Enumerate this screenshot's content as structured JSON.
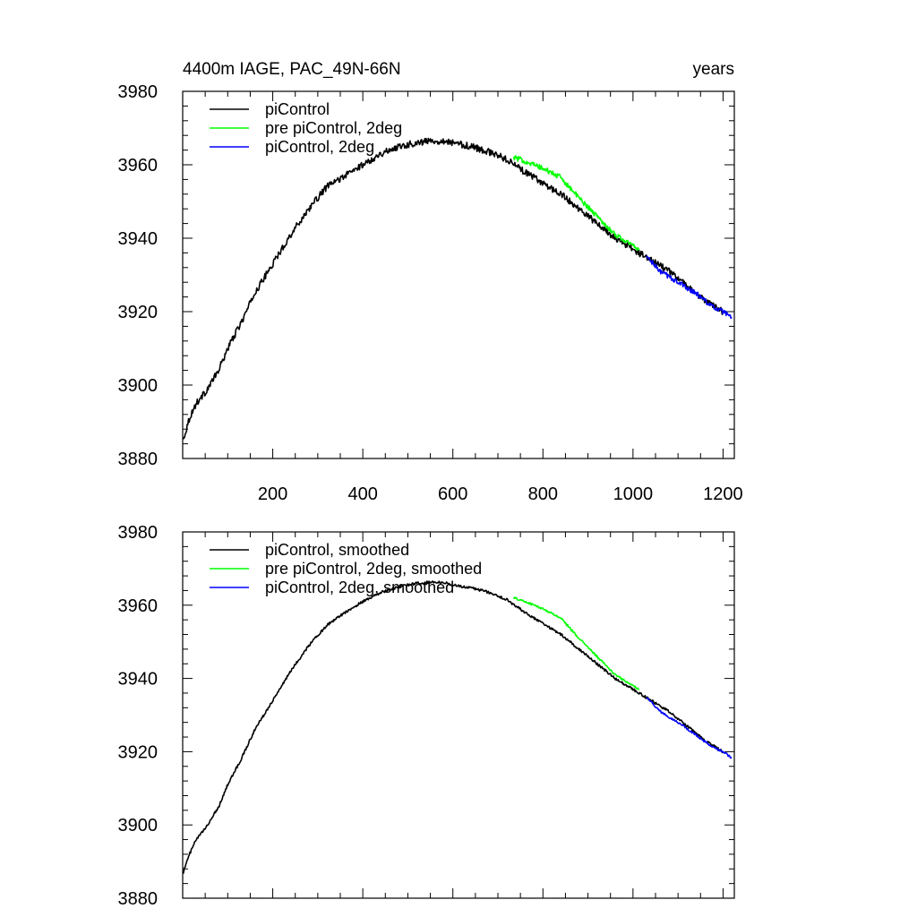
{
  "chart_data": [
    {
      "type": "line",
      "title_left": "4400m IAGE, PAC_49N-66N",
      "title_right": "years",
      "xlim": [
        0,
        1225
      ],
      "ylim": [
        3880,
        3980
      ],
      "xticks": [
        200,
        400,
        600,
        800,
        1000,
        1200
      ],
      "xtick_labels": [
        "200",
        "400",
        "600",
        "800",
        "1000",
        "1200"
      ],
      "yticks": [
        3880,
        3900,
        3920,
        3940,
        3960,
        3980
      ],
      "ytick_labels": [
        "3880",
        "3900",
        "3920",
        "3940",
        "3960",
        "3980"
      ],
      "show_xtick_labels": true,
      "series": [
        {
          "name": "piControl",
          "color": "#000000",
          "noise": 0.9,
          "x": [
            1,
            15,
            30,
            50,
            80,
            100,
            130,
            160,
            200,
            240,
            280,
            320,
            360,
            400,
            440,
            480,
            520,
            550,
            580,
            600,
            640,
            680,
            700,
            720,
            760,
            800,
            840,
            880,
            920,
            960,
            1000,
            1040,
            1080,
            1120,
            1160,
            1200
          ],
          "values": [
            3885,
            3891,
            3895,
            3898,
            3904,
            3910,
            3917,
            3925,
            3933,
            3941,
            3948,
            3954,
            3957,
            3960,
            3963,
            3965,
            3966,
            3966.5,
            3966.5,
            3966,
            3965,
            3963.5,
            3962.5,
            3961.5,
            3958,
            3955,
            3952,
            3948,
            3944,
            3940,
            3937,
            3934,
            3931,
            3927,
            3923,
            3920
          ]
        },
        {
          "name": "pre piControl, 2deg",
          "color": "#00ff00",
          "noise": 0.7,
          "x": [
            735,
            760,
            800,
            840,
            880,
            920,
            960,
            1000,
            1015
          ],
          "values": [
            3962,
            3961,
            3959,
            3956.5,
            3951,
            3946,
            3941,
            3938,
            3937
          ]
        },
        {
          "name": "piControl, 2deg",
          "color": "#0000ff",
          "noise": 0.7,
          "x": [
            1030,
            1060,
            1100,
            1140,
            1180,
            1200,
            1220
          ],
          "values": [
            3935,
            3931,
            3928,
            3925,
            3921,
            3920,
            3918
          ]
        }
      ]
    },
    {
      "type": "line",
      "xlim": [
        0,
        1225
      ],
      "ylim": [
        3880,
        3980
      ],
      "xticks": [
        200,
        400,
        600,
        800,
        1000,
        1200
      ],
      "yticks": [
        3880,
        3900,
        3920,
        3940,
        3960,
        3980
      ],
      "ytick_labels": [
        "3880",
        "3900",
        "3920",
        "3940",
        "3960",
        "3980"
      ],
      "show_xtick_labels": false,
      "series": [
        {
          "name": "piControl, smoothed",
          "color": "#000000",
          "noise": 0.35,
          "x": [
            1,
            15,
            30,
            50,
            80,
            100,
            130,
            160,
            200,
            240,
            280,
            320,
            360,
            400,
            440,
            480,
            520,
            550,
            580,
            600,
            640,
            680,
            700,
            720,
            760,
            800,
            840,
            880,
            920,
            960,
            1000,
            1040,
            1080,
            1120,
            1160,
            1200
          ],
          "values": [
            3887,
            3892,
            3896,
            3899,
            3905,
            3911,
            3918,
            3926,
            3934,
            3942,
            3949,
            3954.5,
            3958,
            3961,
            3963.5,
            3965,
            3966,
            3966.3,
            3966.2,
            3965.5,
            3964.8,
            3963.5,
            3962.5,
            3961.5,
            3958,
            3955,
            3952,
            3948,
            3944,
            3940,
            3937,
            3934,
            3931,
            3927,
            3923,
            3920
          ]
        },
        {
          "name": "pre piControl, 2deg, smoothed",
          "color": "#00ff00",
          "noise": 0.3,
          "x": [
            735,
            760,
            800,
            840,
            880,
            920,
            960,
            1000,
            1015
          ],
          "values": [
            3962,
            3961,
            3959,
            3956.5,
            3951,
            3946,
            3941,
            3938,
            3937
          ]
        },
        {
          "name": "piControl, 2deg, smoothed",
          "color": "#0000ff",
          "noise": 0.3,
          "x": [
            1030,
            1060,
            1100,
            1140,
            1180,
            1200,
            1220
          ],
          "values": [
            3935,
            3931,
            3928,
            3924.5,
            3921,
            3920,
            3918.3
          ]
        }
      ]
    }
  ]
}
